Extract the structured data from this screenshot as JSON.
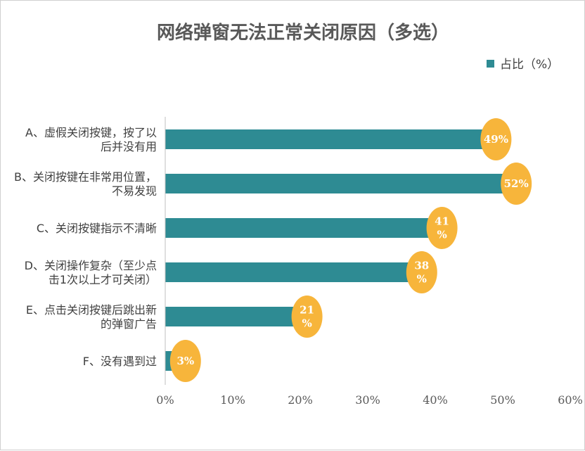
{
  "chart_data": {
    "type": "bar",
    "orientation": "horizontal",
    "title": "网络弹窗无法正常关闭原因（多选）",
    "legend": {
      "position": "top-right",
      "label": "占比（%）"
    },
    "categories": [
      [
        "A、虚假关闭按键，按了以",
        "后并没有用"
      ],
      [
        "B、关闭按键在非常用位置，",
        "不易发现"
      ],
      [
        "C、关闭按键指示不清晰"
      ],
      [
        "D、关闭操作复杂（至少点",
        "击1次以上才可关闭）"
      ],
      [
        "E、点击关闭按键后跳出新",
        "的弹窗广告"
      ],
      [
        "F、没有遇到过"
      ]
    ],
    "series": [
      {
        "name": "占比（%）",
        "values": [
          49,
          52,
          41,
          38,
          21,
          3
        ],
        "data_labels": [
          [
            "49%"
          ],
          [
            "52%"
          ],
          [
            "41",
            "%"
          ],
          [
            "38",
            "%"
          ],
          [
            "21",
            "%"
          ],
          [
            "3%"
          ]
        ]
      }
    ],
    "xlim": [
      0,
      60
    ],
    "x_ticks": [
      0,
      10,
      20,
      30,
      40,
      50,
      60
    ],
    "x_tick_labels": [
      "0%",
      "10%",
      "20%",
      "30%",
      "40%",
      "50%",
      "60%"
    ],
    "grid": false,
    "colors": {
      "bar": "#2e8b93",
      "label_bubble": "#f7b53b"
    }
  }
}
